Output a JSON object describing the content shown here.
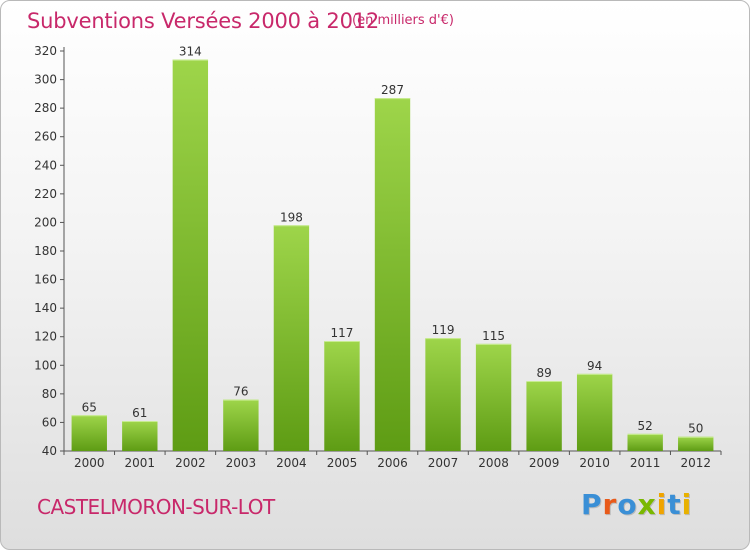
{
  "header": {
    "title": "Subventions Versées 2000 à 2012",
    "subtitle": "(en milliers d'€)"
  },
  "footer": {
    "commune": "CASTELMORON-SUR-LOT",
    "logo_text": "Proxiti",
    "logo_colors": [
      "#3a8fd6",
      "#e85a1a",
      "#3a8fd6",
      "#7ab800",
      "#f0a400",
      "#3a8fd6",
      "#e8b100"
    ]
  },
  "colors": {
    "accent_text": "#c8286a",
    "bar_light": "#9ed54a",
    "bar_dark": "#5e9c14"
  },
  "chart_data": {
    "type": "bar",
    "categories": [
      "2000",
      "2001",
      "2002",
      "2003",
      "2004",
      "2005",
      "2006",
      "2007",
      "2008",
      "2009",
      "2010",
      "2011",
      "2012"
    ],
    "values": [
      65,
      61,
      314,
      76,
      198,
      117,
      287,
      119,
      115,
      89,
      94,
      52,
      50
    ],
    "title": "Subventions Versées 2000 à 2012",
    "subtitle": "(en milliers d'€)",
    "ylim": [
      40,
      320
    ],
    "yticks": [
      40,
      60,
      80,
      100,
      120,
      140,
      160,
      180,
      200,
      220,
      240,
      260,
      280,
      300,
      320
    ],
    "grid": false,
    "data_labels": true
  }
}
